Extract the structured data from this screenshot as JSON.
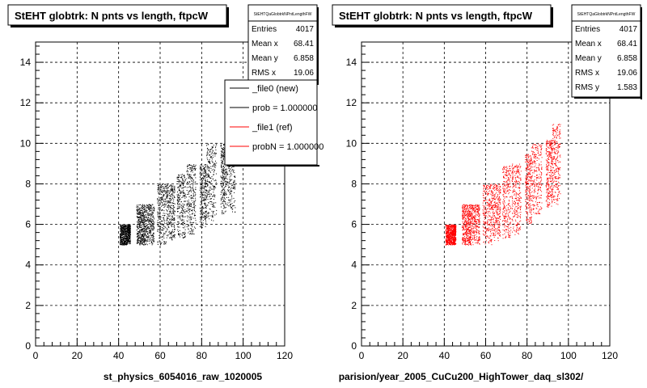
{
  "chart_data": [
    {
      "type": "scatter",
      "title": "StEHT globtrk: N pnts vs length, ftpcW",
      "xlabel": "st_physics_6054016_raw_1020005",
      "ylabel": "",
      "xlim": [
        0,
        120
      ],
      "ylim": [
        0,
        15
      ],
      "x_ticks": [
        "0",
        "20",
        "40",
        "60",
        "80",
        "100",
        "120"
      ],
      "y_ticks": [
        "0",
        "2",
        "4",
        "6",
        "8",
        "10",
        "12",
        "14"
      ],
      "grid": true,
      "marker_color": "#000000",
      "stats": {
        "name": "StEHTQaGlobtrkNPntLengthFW",
        "rows": [
          {
            "label": "Entries",
            "value": "4017"
          },
          {
            "label": "Mean x",
            "value": "68.41"
          },
          {
            "label": "Mean y",
            "value": "6.858"
          },
          {
            "label": "RMS x",
            "value": "19.06"
          }
        ]
      },
      "legend": {
        "placement": "top-right",
        "entries": [
          {
            "label": "_file0 (new)",
            "color": "#000000"
          },
          {
            "label": "prob = 1.000000",
            "color": "#000000"
          },
          {
            "label": "_file1 (ref)",
            "color": "#ff0000"
          },
          {
            "label": "probN = 1.000000",
            "color": "#ff0000"
          }
        ]
      },
      "clusters": [
        {
          "x": [
            40.5,
            44
          ],
          "y": [
            5,
            6
          ],
          "dense": true
        },
        {
          "x": [
            44,
            45.5
          ],
          "y": [
            5,
            6
          ],
          "dense": false
        },
        {
          "x": [
            48.5,
            53
          ],
          "y": [
            5,
            7
          ],
          "dense": true
        },
        {
          "x": [
            53,
            57
          ],
          "y": [
            5,
            7
          ],
          "dense": false
        },
        {
          "x": [
            58.5,
            63
          ],
          "y": [
            5,
            8
          ],
          "dense": false
        },
        {
          "x": [
            63,
            67
          ],
          "y": [
            5.2,
            8
          ],
          "dense": false
        },
        {
          "x": [
            68,
            72
          ],
          "y": [
            5.3,
            8.5
          ],
          "dense": false
        },
        {
          "x": [
            72.5,
            77
          ],
          "y": [
            5.5,
            9
          ],
          "dense": false
        },
        {
          "x": [
            79,
            82
          ],
          "y": [
            5.8,
            9
          ],
          "dense": false
        },
        {
          "x": [
            82,
            87
          ],
          "y": [
            6.2,
            10
          ],
          "dense": false
        },
        {
          "x": [
            89,
            92
          ],
          "y": [
            6.5,
            10
          ],
          "dense": false
        },
        {
          "x": [
            92,
            96
          ],
          "y": [
            6.6,
            10.8
          ],
          "dense": false
        }
      ]
    },
    {
      "type": "scatter",
      "title": "StEHT globtrk: N pnts vs length, ftpcW",
      "xlabel": "parision/year_2005_CuCu200_HighTower_daq_sl302/",
      "ylabel": "",
      "xlim": [
        0,
        120
      ],
      "ylim": [
        0,
        15
      ],
      "x_ticks": [
        "0",
        "20",
        "40",
        "60",
        "80",
        "100",
        "120"
      ],
      "y_ticks": [
        "0",
        "2",
        "4",
        "6",
        "8",
        "10",
        "12",
        "14"
      ],
      "grid": true,
      "marker_color": "#ff0000",
      "stats": {
        "name": "StEHTQaGlobtrkNPntLengthFW",
        "rows": [
          {
            "label": "Entries",
            "value": "4017"
          },
          {
            "label": "Mean x",
            "value": "68.41"
          },
          {
            "label": "Mean y",
            "value": "6.858"
          },
          {
            "label": "RMS x",
            "value": "19.06"
          },
          {
            "label": "RMS y",
            "value": "1.583"
          }
        ]
      },
      "clusters": [
        {
          "x": [
            40.5,
            44
          ],
          "y": [
            5,
            6
          ],
          "dense": true
        },
        {
          "x": [
            44,
            45.5
          ],
          "y": [
            5,
            6
          ],
          "dense": false
        },
        {
          "x": [
            48.5,
            53
          ],
          "y": [
            5,
            7
          ],
          "dense": true
        },
        {
          "x": [
            53,
            57
          ],
          "y": [
            5,
            7
          ],
          "dense": false
        },
        {
          "x": [
            58.5,
            63
          ],
          "y": [
            5,
            8
          ],
          "dense": false
        },
        {
          "x": [
            63,
            67
          ],
          "y": [
            5.2,
            8
          ],
          "dense": false
        },
        {
          "x": [
            68,
            72
          ],
          "y": [
            5.3,
            8.9
          ],
          "dense": false
        },
        {
          "x": [
            72.5,
            77
          ],
          "y": [
            5.5,
            9
          ],
          "dense": false
        },
        {
          "x": [
            79,
            82
          ],
          "y": [
            6,
            9.5
          ],
          "dense": false
        },
        {
          "x": [
            82,
            87
          ],
          "y": [
            6.5,
            10
          ],
          "dense": false
        },
        {
          "x": [
            89,
            92
          ],
          "y": [
            6.8,
            10.2
          ],
          "dense": false
        },
        {
          "x": [
            92,
            96
          ],
          "y": [
            7,
            11
          ],
          "dense": false
        }
      ]
    }
  ]
}
